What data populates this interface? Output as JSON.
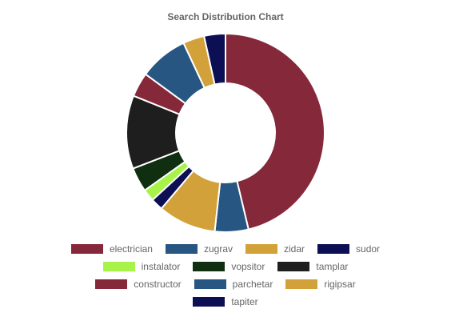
{
  "chart_data": {
    "type": "pie",
    "variant": "doughnut",
    "title": "Search Distribution Chart",
    "legend_position": "bottom",
    "categories": [
      "electrician",
      "zugrav",
      "zidar",
      "sudor",
      "instalator",
      "vopsitor",
      "tamplar",
      "constructor",
      "parchetar",
      "rigipsar",
      "tapiter"
    ],
    "values": [
      46.5,
      5.5,
      9.5,
      2.0,
      2.0,
      4.0,
      12.0,
      4.0,
      8.0,
      3.5,
      3.5
    ],
    "colors": [
      "#85293a",
      "#265681",
      "#d3a139",
      "#0d0f55",
      "#a7f349",
      "#0f2f10",
      "#1e1e1e",
      "#85293a",
      "#265681",
      "#d3a139",
      "#0d0f55"
    ]
  }
}
